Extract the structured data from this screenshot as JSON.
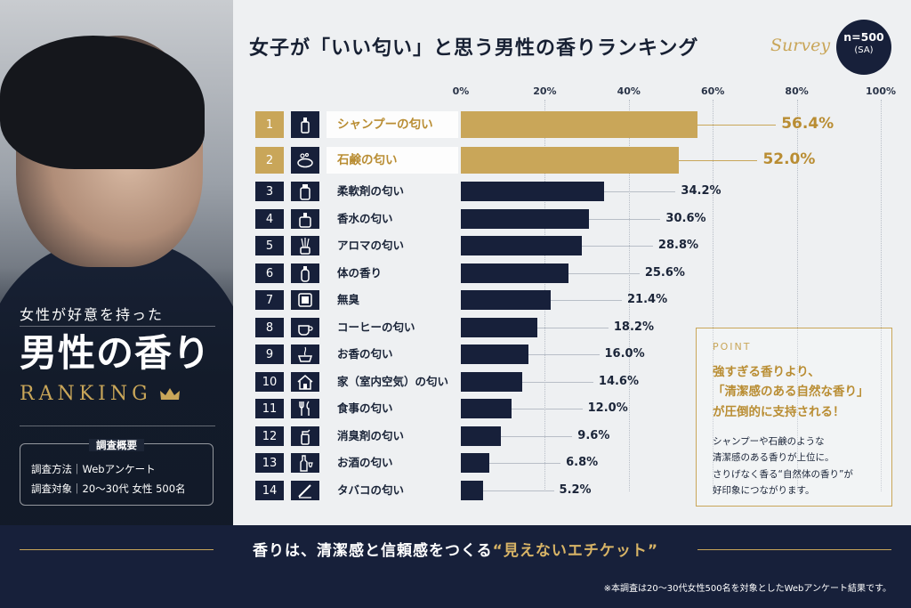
{
  "header": {
    "title": "女子が「いい匂い」と思う男性の香りランキング",
    "survey_script": "Survey",
    "n_label": "n=500",
    "n_sub": "(SA)"
  },
  "left_panel": {
    "subtitle": "女性が好意を持った",
    "big_title": "男性の香り",
    "ranking_word": "RANKING",
    "overview_title": "調査概要",
    "overview_method": "調査方法｜Webアンケート",
    "overview_target": "調査対象｜20〜30代 女性 500名"
  },
  "chart_data": {
    "type": "bar",
    "orientation": "horizontal",
    "xlim": [
      0,
      100
    ],
    "x_ticks": [
      "0%",
      "20%",
      "40%",
      "60%",
      "80%",
      "100%"
    ],
    "value_suffix": "%",
    "grid": true,
    "categories": [
      "シャンプーの匂い",
      "石鹸の匂い",
      "柔軟剤の匂い",
      "香水の匂い",
      "アロマの匂い",
      "体の香り",
      "無臭",
      "コーヒーの匂い",
      "お香の匂い",
      "家（室内空気）の匂い",
      "食事の匂い",
      "消臭剤の匂い",
      "お酒の匂い",
      "タバコの匂い"
    ],
    "ranks": [
      "1",
      "2",
      "3",
      "4",
      "5",
      "6",
      "7",
      "8",
      "9",
      "10",
      "11",
      "12",
      "13",
      "14"
    ],
    "values": [
      56.4,
      52.0,
      34.2,
      30.6,
      28.8,
      25.6,
      21.4,
      18.2,
      16.0,
      14.6,
      12.0,
      9.6,
      6.8,
      5.2
    ],
    "value_labels": [
      "56.4%",
      "52.0%",
      "34.2%",
      "30.6%",
      "28.8%",
      "25.6%",
      "21.4%",
      "18.2%",
      "16.0%",
      "14.6%",
      "12.0%",
      "9.6%",
      "6.8%",
      "5.2%"
    ],
    "icons": [
      "shampoo-bottle-icon",
      "soap-icon",
      "softener-bottle-icon",
      "perfume-icon",
      "aroma-diffuser-icon",
      "body-lotion-icon",
      "odorless-icon",
      "coffee-cup-icon",
      "incense-icon",
      "house-icon",
      "fork-knife-icon",
      "spray-icon",
      "wine-bottle-icon",
      "cigarette-icon"
    ],
    "highlight_count": 2,
    "colors": {
      "gold": "#c9a659",
      "navy": "#17203a"
    }
  },
  "point": {
    "label": "POINT",
    "headline": [
      "強すぎる香りより、",
      "「清潔感のある自然な香り」",
      "が圧倒的に支持される！"
    ],
    "body": [
      "シャンプーや石鹸のような",
      "清潔感のある香りが上位に。",
      "さりげなく香る“自然体の香り”が",
      "好印象につながります。"
    ]
  },
  "footer": {
    "message_main": "香りは、清潔感と信頼感をつくる",
    "message_highlight": "“見えないエチケット”",
    "footnote": "※本調査は20〜30代女性500名を対象としたWebアンケート結果です。"
  }
}
